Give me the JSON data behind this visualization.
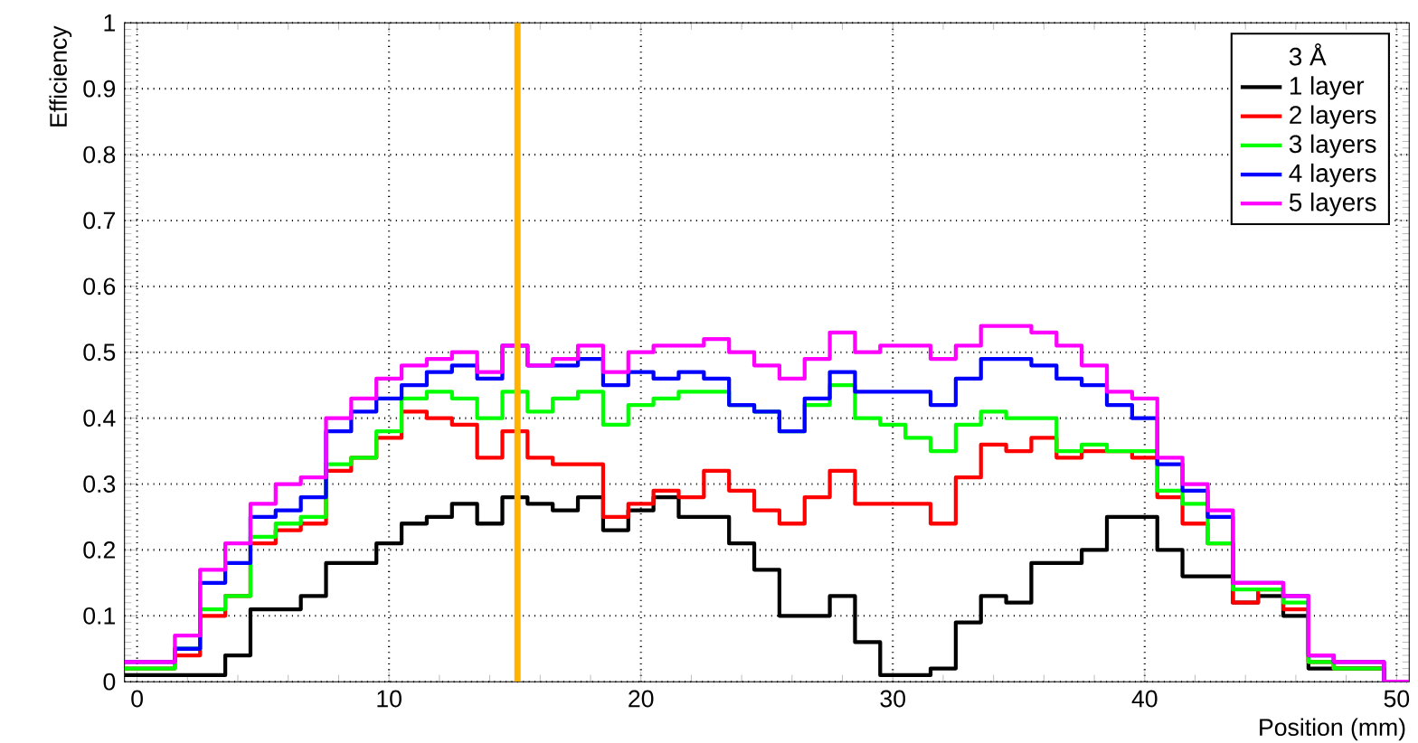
{
  "chart_data": {
    "type": "histogram",
    "xlabel": "Position (mm)",
    "ylabel": "Efficiency",
    "legend_title": "3 Å",
    "bins": [
      -0.5,
      0.5,
      1.5,
      2.5,
      3.5,
      4.5,
      5.5,
      6.5,
      7.5,
      8.5,
      9.5,
      10.5,
      11.5,
      12.5,
      13.5,
      14.5,
      15.5,
      16.5,
      17.5,
      18.5,
      19.5,
      20.5,
      21.5,
      22.5,
      23.5,
      24.5,
      25.5,
      26.5,
      27.5,
      28.5,
      29.5,
      30.5,
      31.5,
      32.5,
      33.5,
      34.5,
      35.5,
      36.5,
      37.5,
      38.5,
      39.5,
      40.5,
      41.5,
      42.5,
      43.5,
      44.5,
      45.5,
      46.5,
      47.5,
      48.5,
      49.5,
      50.5
    ],
    "series": [
      {
        "name": "1 layer",
        "color": "#000000",
        "values": [
          0.01,
          0.01,
          0.01,
          0.01,
          0.04,
          0.11,
          0.11,
          0.13,
          0.18,
          0.18,
          0.21,
          0.24,
          0.25,
          0.27,
          0.24,
          0.28,
          0.27,
          0.26,
          0.28,
          0.23,
          0.26,
          0.28,
          0.25,
          0.25,
          0.21,
          0.17,
          0.1,
          0.1,
          0.13,
          0.06,
          0.01,
          0.01,
          0.02,
          0.09,
          0.13,
          0.12,
          0.18,
          0.18,
          0.2,
          0.25,
          0.25,
          0.2,
          0.16,
          0.16,
          0.12,
          0.13,
          0.1,
          0.02,
          0.02,
          0.02,
          0
        ]
      },
      {
        "name": "2 layers",
        "color": "#ff0000",
        "values": [
          0.02,
          0.02,
          0.04,
          0.1,
          0.13,
          0.21,
          0.23,
          0.24,
          0.32,
          0.34,
          0.37,
          0.41,
          0.4,
          0.39,
          0.34,
          0.38,
          0.34,
          0.33,
          0.33,
          0.25,
          0.27,
          0.29,
          0.28,
          0.32,
          0.29,
          0.26,
          0.24,
          0.28,
          0.32,
          0.27,
          0.27,
          0.27,
          0.24,
          0.31,
          0.36,
          0.35,
          0.37,
          0.34,
          0.35,
          0.35,
          0.34,
          0.28,
          0.24,
          0.21,
          0.12,
          0.14,
          0.11,
          0.03,
          0.02,
          0.02,
          0
        ]
      },
      {
        "name": "3 layers",
        "color": "#00ff00",
        "values": [
          0.02,
          0.02,
          0.05,
          0.11,
          0.13,
          0.22,
          0.24,
          0.25,
          0.33,
          0.34,
          0.38,
          0.43,
          0.44,
          0.43,
          0.4,
          0.44,
          0.41,
          0.43,
          0.44,
          0.39,
          0.42,
          0.43,
          0.44,
          0.44,
          0.42,
          0.41,
          0.38,
          0.42,
          0.45,
          0.4,
          0.39,
          0.37,
          0.35,
          0.39,
          0.41,
          0.4,
          0.4,
          0.35,
          0.36,
          0.35,
          0.35,
          0.29,
          0.27,
          0.21,
          0.14,
          0.14,
          0.12,
          0.03,
          0.02,
          0.02,
          0
        ]
      },
      {
        "name": "4 layers",
        "color": "#0000ff",
        "values": [
          0.03,
          0.03,
          0.05,
          0.15,
          0.18,
          0.25,
          0.26,
          0.28,
          0.38,
          0.41,
          0.43,
          0.45,
          0.47,
          0.48,
          0.46,
          0.51,
          0.48,
          0.48,
          0.49,
          0.45,
          0.47,
          0.46,
          0.47,
          0.46,
          0.42,
          0.41,
          0.38,
          0.43,
          0.47,
          0.44,
          0.44,
          0.44,
          0.42,
          0.46,
          0.49,
          0.49,
          0.48,
          0.46,
          0.45,
          0.42,
          0.4,
          0.33,
          0.29,
          0.25,
          0.15,
          0.15,
          0.13,
          0.04,
          0.03,
          0.03,
          0
        ]
      },
      {
        "name": "5 layers",
        "color": "#ff00ff",
        "values": [
          0.03,
          0.03,
          0.07,
          0.17,
          0.21,
          0.27,
          0.3,
          0.31,
          0.4,
          0.43,
          0.46,
          0.48,
          0.49,
          0.5,
          0.47,
          0.51,
          0.48,
          0.49,
          0.51,
          0.47,
          0.5,
          0.51,
          0.51,
          0.52,
          0.5,
          0.48,
          0.46,
          0.49,
          0.53,
          0.5,
          0.51,
          0.51,
          0.49,
          0.51,
          0.54,
          0.54,
          0.53,
          0.51,
          0.48,
          0.44,
          0.43,
          0.34,
          0.3,
          0.26,
          0.15,
          0.15,
          0.13,
          0.04,
          0.03,
          0.03,
          0
        ]
      }
    ],
    "xlim": [
      -0.5,
      50.5
    ],
    "ylim": [
      0,
      1
    ],
    "xticks": [
      0,
      10,
      20,
      30,
      40,
      50
    ],
    "yticks": [
      0,
      0.1,
      0.2,
      0.3,
      0.4,
      0.5,
      0.6,
      0.7,
      0.8,
      0.9,
      1
    ],
    "grid": true,
    "legend": "top right",
    "ref_lines": [
      {
        "axis": "x",
        "value": 15.1,
        "color": "#ffb300"
      }
    ]
  }
}
